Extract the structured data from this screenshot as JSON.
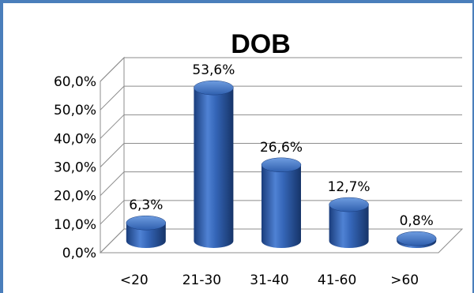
{
  "chart_data": {
    "type": "bar",
    "title": "DOB",
    "xlabel": "",
    "ylabel": "",
    "categories": [
      "<20",
      "21-30",
      "31-40",
      "41-60",
      ">60"
    ],
    "values": [
      6.3,
      53.6,
      26.6,
      12.7,
      0.8
    ],
    "value_labels": [
      "6,3%",
      "53,6%",
      "26,6%",
      "12,7%",
      "0,8%"
    ],
    "ylim": [
      0,
      60
    ],
    "yticks": [
      0,
      10,
      20,
      30,
      40,
      50,
      60
    ],
    "ytick_labels": [
      "0,0%",
      "10,0%",
      "20,0%",
      "30,0%",
      "40,0%",
      "50,0%",
      "60,0%"
    ],
    "grid": true,
    "legend": "none",
    "bar_style": "3d-cylinder",
    "colors": {
      "bar": "#2f5fae",
      "bar_dark": "#1a3d7c",
      "bar_light": "#6f9de0",
      "frame": "#4a7ebb"
    }
  }
}
